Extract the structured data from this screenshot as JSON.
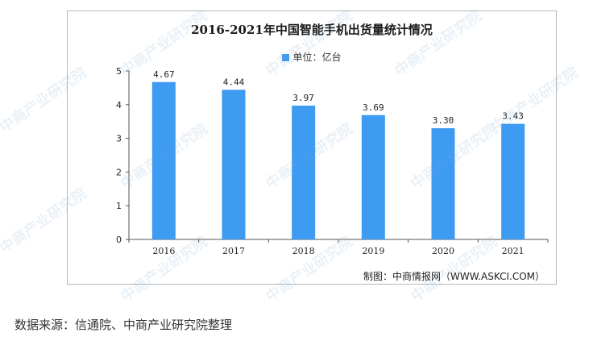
{
  "chart_data": {
    "type": "bar",
    "title": "2016-2021年中国智能手机出货量统计情况",
    "legend": {
      "label": "单位：亿台",
      "placement": "top-center"
    },
    "categories": [
      "2016",
      "2017",
      "2018",
      "2019",
      "2020",
      "2021"
    ],
    "series": [
      {
        "name": "单位：亿台",
        "values": [
          4.67,
          4.44,
          3.97,
          3.69,
          3.3,
          3.43
        ],
        "color": "#3d9bf2"
      }
    ],
    "value_labels": [
      "4.67",
      "4.44",
      "3.97",
      "3.69",
      "3.30",
      "3.43"
    ],
    "yticks": [
      "0",
      "1",
      "2",
      "3",
      "4",
      "5"
    ],
    "ylim": [
      0,
      5
    ],
    "xlabel": "",
    "ylabel": "",
    "grid": false
  },
  "credit": "制图：中商情报网（WWW.ASKCI.COM）",
  "source": "数据来源：信通院、中商产业研究院整理",
  "watermark": "中商产业研究院"
}
